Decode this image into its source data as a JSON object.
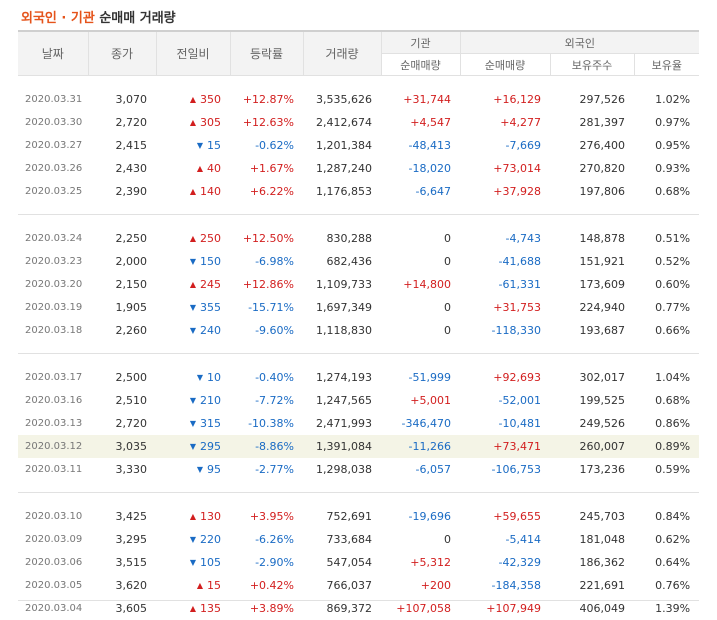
{
  "title": {
    "part1": "외국인 · 기관",
    "part2": "순매매 거래량"
  },
  "headers": {
    "date": "날짜",
    "close": "종가",
    "change": "전일비",
    "rate": "등락률",
    "volume": "거래량",
    "inst": "기관",
    "foreign": "외국인",
    "inst_net": "순매매량",
    "foreign_net": "순매매량",
    "holdings": "보유주수",
    "hold_ratio": "보유율"
  },
  "rows": [
    {
      "date": "2020.03.31",
      "close": "3,070",
      "dir": "up",
      "change": "350",
      "rate": "+12.87%",
      "volume": "3,535,626",
      "inst": "+31,744",
      "foreign": "+16,129",
      "holdings": "297,526",
      "ratio": "1.02%"
    },
    {
      "date": "2020.03.30",
      "close": "2,720",
      "dir": "up",
      "change": "305",
      "rate": "+12.63%",
      "volume": "2,412,674",
      "inst": "+4,547",
      "foreign": "+4,277",
      "holdings": "281,397",
      "ratio": "0.97%"
    },
    {
      "date": "2020.03.27",
      "close": "2,415",
      "dir": "dn",
      "change": "15",
      "rate": "-0.62%",
      "volume": "1,201,384",
      "inst": "-48,413",
      "foreign": "-7,669",
      "holdings": "276,400",
      "ratio": "0.95%"
    },
    {
      "date": "2020.03.26",
      "close": "2,430",
      "dir": "up",
      "change": "40",
      "rate": "+1.67%",
      "volume": "1,287,240",
      "inst": "-18,020",
      "foreign": "+73,014",
      "holdings": "270,820",
      "ratio": "0.93%"
    },
    {
      "date": "2020.03.25",
      "close": "2,390",
      "dir": "up",
      "change": "140",
      "rate": "+6.22%",
      "volume": "1,176,853",
      "inst": "-6,647",
      "foreign": "+37,928",
      "holdings": "197,806",
      "ratio": "0.68%"
    },
    {
      "date": "2020.03.24",
      "close": "2,250",
      "dir": "up",
      "change": "250",
      "rate": "+12.50%",
      "volume": "830,288",
      "inst": "0",
      "foreign": "-4,743",
      "holdings": "148,878",
      "ratio": "0.51%"
    },
    {
      "date": "2020.03.23",
      "close": "2,000",
      "dir": "dn",
      "change": "150",
      "rate": "-6.98%",
      "volume": "682,436",
      "inst": "0",
      "foreign": "-41,688",
      "holdings": "151,921",
      "ratio": "0.52%"
    },
    {
      "date": "2020.03.20",
      "close": "2,150",
      "dir": "up",
      "change": "245",
      "rate": "+12.86%",
      "volume": "1,109,733",
      "inst": "+14,800",
      "foreign": "-61,331",
      "holdings": "173,609",
      "ratio": "0.60%"
    },
    {
      "date": "2020.03.19",
      "close": "1,905",
      "dir": "dn",
      "change": "355",
      "rate": "-15.71%",
      "volume": "1,697,349",
      "inst": "0",
      "foreign": "+31,753",
      "holdings": "224,940",
      "ratio": "0.77%"
    },
    {
      "date": "2020.03.18",
      "close": "2,260",
      "dir": "dn",
      "change": "240",
      "rate": "-9.60%",
      "volume": "1,118,830",
      "inst": "0",
      "foreign": "-118,330",
      "holdings": "193,687",
      "ratio": "0.66%"
    },
    {
      "date": "2020.03.17",
      "close": "2,500",
      "dir": "dn",
      "change": "10",
      "rate": "-0.40%",
      "volume": "1,274,193",
      "inst": "-51,999",
      "foreign": "+92,693",
      "holdings": "302,017",
      "ratio": "1.04%"
    },
    {
      "date": "2020.03.16",
      "close": "2,510",
      "dir": "dn",
      "change": "210",
      "rate": "-7.72%",
      "volume": "1,247,565",
      "inst": "+5,001",
      "foreign": "-52,001",
      "holdings": "199,525",
      "ratio": "0.68%"
    },
    {
      "date": "2020.03.13",
      "close": "2,720",
      "dir": "dn",
      "change": "315",
      "rate": "-10.38%",
      "volume": "2,471,993",
      "inst": "-346,470",
      "foreign": "-10,481",
      "holdings": "249,526",
      "ratio": "0.86%"
    },
    {
      "date": "2020.03.12",
      "close": "3,035",
      "dir": "dn",
      "change": "295",
      "rate": "-8.86%",
      "volume": "1,391,084",
      "inst": "-11,266",
      "foreign": "+73,471",
      "holdings": "260,007",
      "ratio": "0.89%",
      "highlight": true
    },
    {
      "date": "2020.03.11",
      "close": "3,330",
      "dir": "dn",
      "change": "95",
      "rate": "-2.77%",
      "volume": "1,298,038",
      "inst": "-6,057",
      "foreign": "-106,753",
      "holdings": "173,236",
      "ratio": "0.59%"
    },
    {
      "date": "2020.03.10",
      "close": "3,425",
      "dir": "up",
      "change": "130",
      "rate": "+3.95%",
      "volume": "752,691",
      "inst": "-19,696",
      "foreign": "+59,655",
      "holdings": "245,703",
      "ratio": "0.84%"
    },
    {
      "date": "2020.03.09",
      "close": "3,295",
      "dir": "dn",
      "change": "220",
      "rate": "-6.26%",
      "volume": "733,684",
      "inst": "0",
      "foreign": "-5,414",
      "holdings": "181,048",
      "ratio": "0.62%"
    },
    {
      "date": "2020.03.06",
      "close": "3,515",
      "dir": "dn",
      "change": "105",
      "rate": "-2.90%",
      "volume": "547,054",
      "inst": "+5,312",
      "foreign": "-42,329",
      "holdings": "186,362",
      "ratio": "0.64%"
    },
    {
      "date": "2020.03.05",
      "close": "3,620",
      "dir": "up",
      "change": "15",
      "rate": "+0.42%",
      "volume": "766,037",
      "inst": "+200",
      "foreign": "-184,358",
      "holdings": "221,691",
      "ratio": "0.76%"
    },
    {
      "date": "2020.03.04",
      "close": "3,605",
      "dir": "up",
      "change": "135",
      "rate": "+3.89%",
      "volume": "869,372",
      "inst": "+107,058",
      "foreign": "+107,949",
      "holdings": "406,049",
      "ratio": "1.39%"
    }
  ],
  "icons": {
    "up": "triangle-up-icon",
    "dn": "triangle-down-icon"
  },
  "colors": {
    "up": "#d21e1e",
    "down": "#1a6bc4",
    "accent": "#e5531a",
    "highlight_row": "#f4f4e6"
  }
}
